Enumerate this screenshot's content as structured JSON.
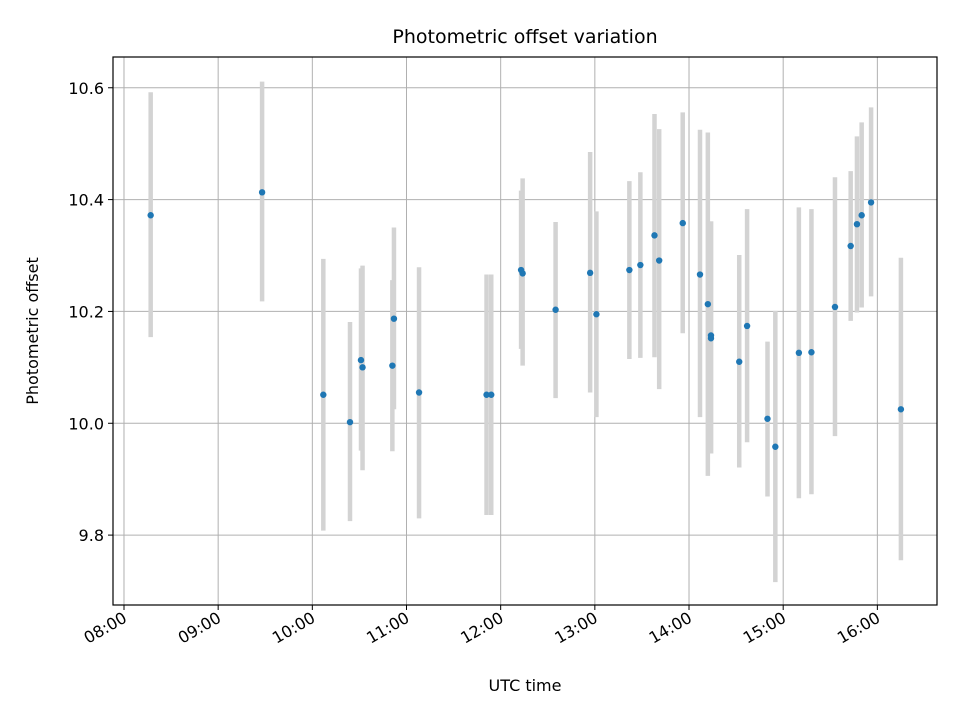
{
  "chart_data": {
    "type": "scatter",
    "title": "Photometric offset variation",
    "xlabel": "UTC time",
    "ylabel": "Photometric offset",
    "x_tick_labels": [
      "08:00",
      "09:00",
      "10:00",
      "11:00",
      "12:00",
      "13:00",
      "14:00",
      "15:00",
      "16:00"
    ],
    "y_tick_labels": [
      "9.8",
      "10.0",
      "10.2",
      "10.4",
      "10.6"
    ],
    "y_ticks": [
      9.8,
      10.0,
      10.2,
      10.4,
      10.6
    ],
    "xlim": [
      "07:53",
      "16:38"
    ],
    "ylim": [
      9.675,
      10.655
    ],
    "grid": true,
    "colors": {
      "point": "#1f77b4",
      "errorbar": "#d3d3d3",
      "grid": "#b0b0b0"
    },
    "points": [
      {
        "x": "08:17",
        "y": 10.372,
        "ylow": 10.154,
        "yhigh": 10.592
      },
      {
        "x": "09:28",
        "y": 10.413,
        "ylow": 10.218,
        "yhigh": 10.611
      },
      {
        "x": "10:07",
        "y": 10.051,
        "ylow": 9.808,
        "yhigh": 10.294
      },
      {
        "x": "10:24",
        "y": 10.002,
        "ylow": 9.825,
        "yhigh": 10.181
      },
      {
        "x": "10:31",
        "y": 10.113,
        "ylow": 9.951,
        "yhigh": 10.277
      },
      {
        "x": "10:32",
        "y": 10.1,
        "ylow": 9.916,
        "yhigh": 10.282
      },
      {
        "x": "10:51",
        "y": 10.103,
        "ylow": 9.95,
        "yhigh": 10.256
      },
      {
        "x": "10:52",
        "y": 10.187,
        "ylow": 10.025,
        "yhigh": 10.35
      },
      {
        "x": "11:08",
        "y": 10.055,
        "ylow": 9.83,
        "yhigh": 10.279
      },
      {
        "x": "11:51",
        "y": 10.051,
        "ylow": 9.836,
        "yhigh": 10.266
      },
      {
        "x": "11:54",
        "y": 10.051,
        "ylow": 9.836,
        "yhigh": 10.266
      },
      {
        "x": "12:13",
        "y": 10.274,
        "ylow": 10.133,
        "yhigh": 10.416
      },
      {
        "x": "12:14",
        "y": 10.268,
        "ylow": 10.103,
        "yhigh": 10.438
      },
      {
        "x": "12:35",
        "y": 10.203,
        "ylow": 10.045,
        "yhigh": 10.36
      },
      {
        "x": "12:57",
        "y": 10.269,
        "ylow": 10.055,
        "yhigh": 10.485
      },
      {
        "x": "13:01",
        "y": 10.195,
        "ylow": 10.011,
        "yhigh": 10.379
      },
      {
        "x": "13:22",
        "y": 10.274,
        "ylow": 10.115,
        "yhigh": 10.433
      },
      {
        "x": "13:29",
        "y": 10.283,
        "ylow": 10.117,
        "yhigh": 10.449
      },
      {
        "x": "13:38",
        "y": 10.336,
        "ylow": 10.118,
        "yhigh": 10.553
      },
      {
        "x": "13:41",
        "y": 10.291,
        "ylow": 10.061,
        "yhigh": 10.526
      },
      {
        "x": "13:56",
        "y": 10.358,
        "ylow": 10.161,
        "yhigh": 10.556
      },
      {
        "x": "14:07",
        "y": 10.266,
        "ylow": 10.011,
        "yhigh": 10.525
      },
      {
        "x": "14:12",
        "y": 10.213,
        "ylow": 9.906,
        "yhigh": 10.52
      },
      {
        "x": "14:14",
        "y": 10.157,
        "ylow": 9.946,
        "yhigh": 10.361
      },
      {
        "x": "14:14",
        "y": 10.152,
        "ylow": 9.946,
        "yhigh": 10.361
      },
      {
        "x": "14:32",
        "y": 10.11,
        "ylow": 9.921,
        "yhigh": 10.301
      },
      {
        "x": "14:37",
        "y": 10.174,
        "ylow": 9.966,
        "yhigh": 10.383
      },
      {
        "x": "14:50",
        "y": 10.008,
        "ylow": 9.869,
        "yhigh": 10.146
      },
      {
        "x": "14:55",
        "y": 9.958,
        "ylow": 9.716,
        "yhigh": 10.201
      },
      {
        "x": "15:10",
        "y": 10.126,
        "ylow": 9.866,
        "yhigh": 10.386
      },
      {
        "x": "15:18",
        "y": 10.127,
        "ylow": 9.873,
        "yhigh": 10.383
      },
      {
        "x": "15:33",
        "y": 10.208,
        "ylow": 9.977,
        "yhigh": 10.44
      },
      {
        "x": "15:43",
        "y": 10.317,
        "ylow": 10.183,
        "yhigh": 10.451
      },
      {
        "x": "15:47",
        "y": 10.356,
        "ylow": 10.198,
        "yhigh": 10.513
      },
      {
        "x": "15:50",
        "y": 10.372,
        "ylow": 10.207,
        "yhigh": 10.538
      },
      {
        "x": "15:56",
        "y": 10.395,
        "ylow": 10.227,
        "yhigh": 10.565
      },
      {
        "x": "16:15",
        "y": 10.025,
        "ylow": 9.755,
        "yhigh": 10.296
      }
    ]
  }
}
